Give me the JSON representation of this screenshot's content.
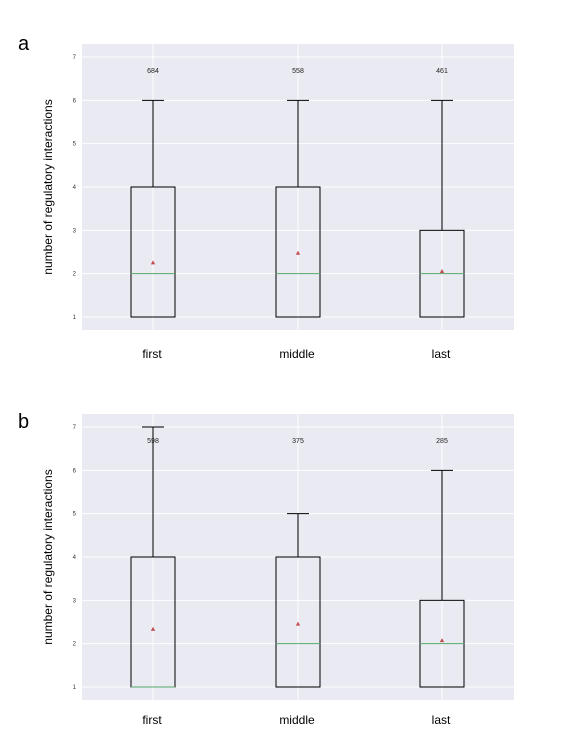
{
  "chart_data": [
    {
      "panel_label": "a",
      "type": "boxplot",
      "ylabel": "number of regulatory interactions",
      "ylim": [
        0.7,
        7.3
      ],
      "yticks": [
        1,
        2,
        3,
        4,
        5,
        6,
        7
      ],
      "grid": true,
      "categories": [
        "first",
        "middle",
        "last"
      ],
      "counts": [
        "684",
        "558",
        "461"
      ],
      "boxes": [
        {
          "whisker_low": 1,
          "q1": 1,
          "median": 2,
          "q3": 4,
          "whisker_high": 6,
          "mean": 2.25
        },
        {
          "whisker_low": 1,
          "q1": 1,
          "median": 2,
          "q3": 4,
          "whisker_high": 6,
          "mean": 2.47
        },
        {
          "whisker_low": 1,
          "q1": 1,
          "median": 2,
          "q3": 3,
          "whisker_high": 6,
          "mean": 2.05
        }
      ]
    },
    {
      "panel_label": "b",
      "type": "boxplot",
      "ylabel": "number of regulatory interactions",
      "ylim": [
        0.7,
        7.3
      ],
      "yticks": [
        1,
        2,
        3,
        4,
        5,
        6,
        7
      ],
      "grid": true,
      "categories": [
        "first",
        "middle",
        "last"
      ],
      "counts": [
        "598",
        "375",
        "285"
      ],
      "boxes": [
        {
          "whisker_low": 1,
          "q1": 1,
          "median": 1,
          "q3": 4,
          "whisker_high": 7,
          "mean": 2.33
        },
        {
          "whisker_low": 1,
          "q1": 1,
          "median": 2,
          "q3": 4,
          "whisker_high": 5,
          "mean": 2.45
        },
        {
          "whisker_low": 1,
          "q1": 1,
          "median": 2,
          "q3": 3,
          "whisker_high": 6,
          "mean": 2.07
        }
      ]
    }
  ]
}
